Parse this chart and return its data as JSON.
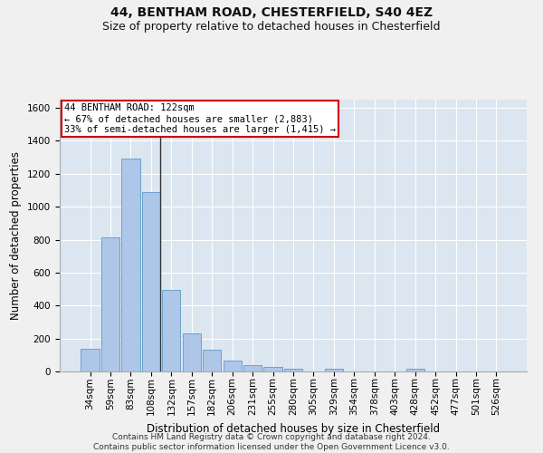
{
  "title_line1": "44, BENTHAM ROAD, CHESTERFIELD, S40 4EZ",
  "title_line2": "Size of property relative to detached houses in Chesterfield",
  "xlabel": "Distribution of detached houses by size in Chesterfield",
  "ylabel": "Number of detached properties",
  "categories": [
    "34sqm",
    "59sqm",
    "83sqm",
    "108sqm",
    "132sqm",
    "157sqm",
    "182sqm",
    "206sqm",
    "231sqm",
    "255sqm",
    "280sqm",
    "305sqm",
    "329sqm",
    "354sqm",
    "378sqm",
    "403sqm",
    "428sqm",
    "452sqm",
    "477sqm",
    "501sqm",
    "526sqm"
  ],
  "values": [
    140,
    815,
    1295,
    1090,
    495,
    230,
    130,
    65,
    40,
    25,
    15,
    0,
    15,
    0,
    0,
    0,
    15,
    0,
    0,
    0,
    0
  ],
  "bar_color": "#aec6e8",
  "bar_edge_color": "#5b9bc8",
  "property_bin_index": 3,
  "annotation_line1": "44 BENTHAM ROAD: 122sqm",
  "annotation_line2": "← 67% of detached houses are smaller (2,883)",
  "annotation_line3": "33% of semi-detached houses are larger (1,415) →",
  "annotation_box_color": "#ffffff",
  "annotation_box_edge_color": "#cc0000",
  "vline_color": "#333333",
  "ylim": [
    0,
    1650
  ],
  "yticks": [
    0,
    200,
    400,
    600,
    800,
    1000,
    1200,
    1400,
    1600
  ],
  "background_color": "#dce6f0",
  "fig_background_color": "#f0f0f0",
  "footer_line1": "Contains HM Land Registry data © Crown copyright and database right 2024.",
  "footer_line2": "Contains public sector information licensed under the Open Government Licence v3.0.",
  "title_fontsize": 10,
  "subtitle_fontsize": 9,
  "axis_label_fontsize": 8.5,
  "tick_fontsize": 7.5,
  "annotation_fontsize": 7.5,
  "footer_fontsize": 6.5
}
